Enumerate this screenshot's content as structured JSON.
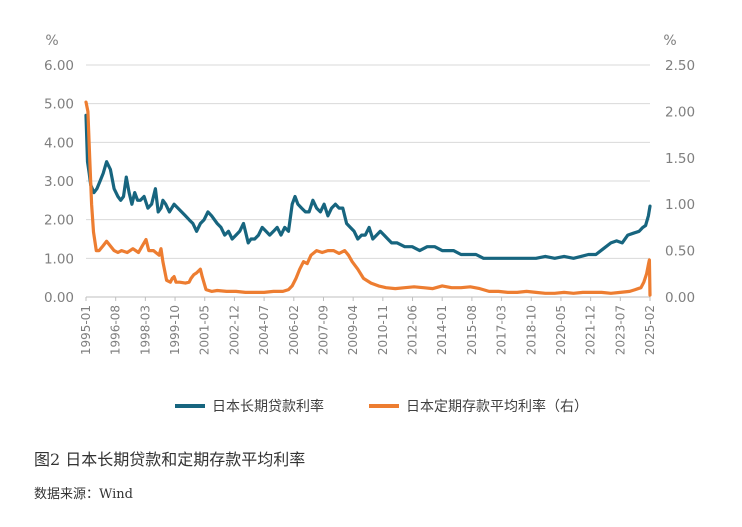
{
  "figure": {
    "caption": "图2 日本长期贷款和定期存款平均利率",
    "source": "数据来源：Wind"
  },
  "chart_data": {
    "type": "line",
    "left_unit": "%",
    "right_unit": "%",
    "left_ticks": [
      "0.00",
      "1.00",
      "2.00",
      "3.00",
      "4.00",
      "5.00",
      "6.00"
    ],
    "right_ticks": [
      "0.00",
      "0.50",
      "1.00",
      "1.50",
      "2.00",
      "2.50"
    ],
    "ylim_left": [
      0,
      6
    ],
    "ylim_right": [
      0,
      2.5
    ],
    "xlim": [
      1995.0,
      2025.083
    ],
    "x_tick_labels": [
      "1995-01",
      "1996-08",
      "1998-03",
      "1999-10",
      "2001-05",
      "2002-12",
      "2004-07",
      "2006-02",
      "2007-09",
      "2009-04",
      "2010-11",
      "2012-06",
      "2014-01",
      "2015-08",
      "2017-03",
      "2018-10",
      "2020-05",
      "2021-12",
      "2023-07",
      "2025-02"
    ],
    "grid": "horizontal",
    "legend_position": "bottom",
    "colors": {
      "loan": "#17657f",
      "deposit": "#ed7d31"
    },
    "series": [
      {
        "name": "日本长期贷款利率",
        "axis": "left",
        "color": "#17657f",
        "x": [
          1995.0,
          1995.08,
          1995.17,
          1995.25,
          1995.42,
          1995.58,
          1995.75,
          1995.92,
          1996.1,
          1996.3,
          1996.5,
          1996.7,
          1996.85,
          1997.0,
          1997.15,
          1997.3,
          1997.45,
          1997.6,
          1997.75,
          1997.9,
          1998.1,
          1998.3,
          1998.5,
          1998.7,
          1998.85,
          1999.0,
          1999.1,
          1999.25,
          1999.45,
          1999.7,
          1999.9,
          2000.1,
          2000.3,
          2000.5,
          2000.7,
          2000.9,
          2001.1,
          2001.3,
          2001.5,
          2001.7,
          2002.0,
          2002.2,
          2002.4,
          2002.6,
          2002.8,
          2003.0,
          2003.2,
          2003.4,
          2003.5,
          2003.65,
          2003.8,
          2004.0,
          2004.2,
          2004.4,
          2004.6,
          2004.8,
          2005.0,
          2005.2,
          2005.4,
          2005.6,
          2005.8,
          2006.0,
          2006.15,
          2006.3,
          2006.5,
          2006.7,
          2006.9,
          2007.1,
          2007.3,
          2007.5,
          2007.7,
          2007.9,
          2008.1,
          2008.3,
          2008.5,
          2008.7,
          2008.9,
          2009.1,
          2009.3,
          2009.5,
          2009.7,
          2009.9,
          2010.1,
          2010.3,
          2010.5,
          2010.7,
          2010.9,
          2011.1,
          2011.3,
          2011.6,
          2012.0,
          2012.4,
          2012.8,
          2013.2,
          2013.6,
          2014.0,
          2014.3,
          2014.6,
          2015.0,
          2015.4,
          2015.8,
          2016.2,
          2016.6,
          2017.0,
          2017.4,
          2017.8,
          2018.2,
          2018.6,
          2019.0,
          2019.5,
          2020.0,
          2020.5,
          2021.0,
          2021.4,
          2021.8,
          2022.2,
          2022.6,
          2023.0,
          2023.3,
          2023.6,
          2023.9,
          2024.2,
          2024.5,
          2024.7,
          2024.85,
          2025.0,
          2025.083
        ],
        "y": [
          4.7,
          3.5,
          3.2,
          2.9,
          2.7,
          2.8,
          3.0,
          3.2,
          3.5,
          3.3,
          2.8,
          2.6,
          2.5,
          2.6,
          3.1,
          2.7,
          2.4,
          2.7,
          2.5,
          2.5,
          2.6,
          2.3,
          2.4,
          2.8,
          2.2,
          2.3,
          2.5,
          2.4,
          2.2,
          2.4,
          2.3,
          2.2,
          2.1,
          2.0,
          1.9,
          1.7,
          1.9,
          2.0,
          2.2,
          2.1,
          1.9,
          1.8,
          1.6,
          1.7,
          1.5,
          1.6,
          1.7,
          1.9,
          1.7,
          1.4,
          1.5,
          1.5,
          1.6,
          1.8,
          1.7,
          1.6,
          1.7,
          1.8,
          1.6,
          1.8,
          1.7,
          2.4,
          2.6,
          2.4,
          2.3,
          2.2,
          2.2,
          2.5,
          2.3,
          2.2,
          2.4,
          2.1,
          2.3,
          2.4,
          2.3,
          2.3,
          1.9,
          1.8,
          1.7,
          1.5,
          1.6,
          1.6,
          1.8,
          1.5,
          1.6,
          1.7,
          1.6,
          1.5,
          1.4,
          1.4,
          1.3,
          1.3,
          1.2,
          1.3,
          1.3,
          1.2,
          1.2,
          1.2,
          1.1,
          1.1,
          1.1,
          1.0,
          1.0,
          1.0,
          1.0,
          1.0,
          1.0,
          1.0,
          1.0,
          1.05,
          1.0,
          1.05,
          1.0,
          1.05,
          1.1,
          1.1,
          1.25,
          1.4,
          1.45,
          1.4,
          1.6,
          1.65,
          1.7,
          1.8,
          1.85,
          2.1,
          2.35
        ]
      },
      {
        "name": "日本定期存款平均利率（右）",
        "axis": "right",
        "color": "#ed7d31",
        "x": [
          1995.0,
          1995.1,
          1995.2,
          1995.3,
          1995.4,
          1995.55,
          1995.7,
          1995.9,
          1996.1,
          1996.3,
          1996.5,
          1996.7,
          1996.9,
          1997.2,
          1997.5,
          1997.8,
          1998.0,
          1998.2,
          1998.35,
          1998.6,
          1998.9,
          1999.0,
          1999.1,
          1999.3,
          1999.5,
          1999.6,
          1999.7,
          1999.8,
          2000.0,
          2000.3,
          2000.5,
          2000.6,
          2000.75,
          2000.9,
          2001.0,
          2001.1,
          2001.2,
          2001.4,
          2001.7,
          2002.0,
          2002.5,
          2003.0,
          2003.5,
          2004.0,
          2004.5,
          2005.0,
          2005.5,
          2005.8,
          2006.0,
          2006.2,
          2006.4,
          2006.6,
          2006.8,
          2007.0,
          2007.3,
          2007.6,
          2007.9,
          2008.2,
          2008.5,
          2008.8,
          2009.0,
          2009.2,
          2009.5,
          2009.8,
          2010.2,
          2010.6,
          2011.0,
          2011.5,
          2012.0,
          2012.5,
          2013.0,
          2013.5,
          2014.0,
          2014.5,
          2015.0,
          2015.5,
          2016.0,
          2016.5,
          2017.0,
          2017.5,
          2018.0,
          2018.5,
          2019.0,
          2019.5,
          2020.0,
          2020.5,
          2021.0,
          2021.5,
          2022.0,
          2022.5,
          2023.0,
          2023.5,
          2024.0,
          2024.3,
          2024.6,
          2024.75,
          2024.9,
          2025.0,
          2025.05,
          2025.083
        ],
        "y": [
          2.1,
          2.0,
          1.5,
          1.0,
          0.7,
          0.5,
          0.5,
          0.55,
          0.6,
          0.55,
          0.5,
          0.48,
          0.5,
          0.48,
          0.52,
          0.48,
          0.55,
          0.62,
          0.5,
          0.5,
          0.45,
          0.52,
          0.38,
          0.18,
          0.16,
          0.2,
          0.22,
          0.16,
          0.16,
          0.15,
          0.16,
          0.2,
          0.24,
          0.26,
          0.28,
          0.3,
          0.22,
          0.08,
          0.06,
          0.07,
          0.06,
          0.06,
          0.05,
          0.05,
          0.05,
          0.06,
          0.06,
          0.08,
          0.12,
          0.2,
          0.3,
          0.38,
          0.36,
          0.45,
          0.5,
          0.48,
          0.5,
          0.5,
          0.47,
          0.5,
          0.45,
          0.38,
          0.3,
          0.2,
          0.15,
          0.12,
          0.1,
          0.09,
          0.1,
          0.11,
          0.1,
          0.09,
          0.12,
          0.1,
          0.1,
          0.11,
          0.09,
          0.06,
          0.06,
          0.05,
          0.05,
          0.06,
          0.05,
          0.04,
          0.04,
          0.05,
          0.04,
          0.05,
          0.05,
          0.05,
          0.04,
          0.05,
          0.06,
          0.08,
          0.1,
          0.16,
          0.25,
          0.35,
          0.4,
          0.02
        ]
      }
    ]
  }
}
